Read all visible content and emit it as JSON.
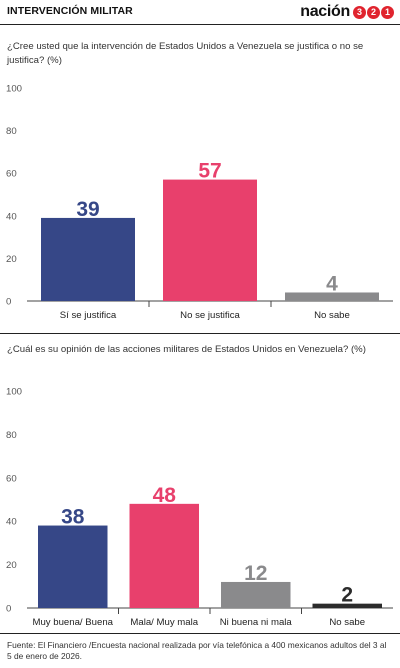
{
  "header": {
    "section_title": "INTERVENCIÓN MILITAR",
    "brand_word": "nación",
    "brand_digits": [
      "3",
      "2",
      "1"
    ]
  },
  "colors": {
    "blue": "#364787",
    "pink": "#e8406c",
    "gray": "#8a8a8c",
    "dark": "#2b2b2b",
    "brand_red": "#e0242e"
  },
  "chart_data": [
    {
      "type": "bar",
      "title": "¿Cree usted que la intervención de Estados Unidos a Venezuela se justifica o no se justifica? (%)",
      "categories": [
        "Sí se justifica",
        "No se justifica",
        "No sabe"
      ],
      "values": [
        39,
        57,
        4
      ],
      "value_labels": [
        "39",
        "57",
        "4"
      ],
      "bar_colors": [
        "#364787",
        "#e8406c",
        "#8a8a8c"
      ],
      "label_colors": [
        "#364787",
        "#e8406c",
        "#8a8a8c"
      ],
      "ylim": [
        0,
        100
      ],
      "yticks": [
        0,
        20,
        40,
        60,
        80,
        100
      ],
      "grid": false
    },
    {
      "type": "bar",
      "title": "¿Cuál es su opinión de las acciones militares de Estados Unidos en Venezuela? (%)",
      "categories": [
        "Muy buena/ Buena",
        "Mala/ Muy mala",
        "Ni buena ni mala",
        "No sabe"
      ],
      "values": [
        38,
        48,
        12,
        2
      ],
      "value_labels": [
        "38",
        "48",
        "12",
        "2"
      ],
      "bar_colors": [
        "#364787",
        "#e8406c",
        "#8a8a8c",
        "#2b2b2b"
      ],
      "label_colors": [
        "#364787",
        "#e8406c",
        "#8a8a8c",
        "#2b2b2b"
      ],
      "ylim": [
        0,
        100
      ],
      "yticks": [
        0,
        20,
        40,
        60,
        80,
        100
      ],
      "grid": false
    }
  ],
  "footer": {
    "source": "Fuente: El Financiero /Encuesta nacional realizada por vía telefónica a 400 mexicanos adultos del 3 al 5 de enero de 2026."
  }
}
